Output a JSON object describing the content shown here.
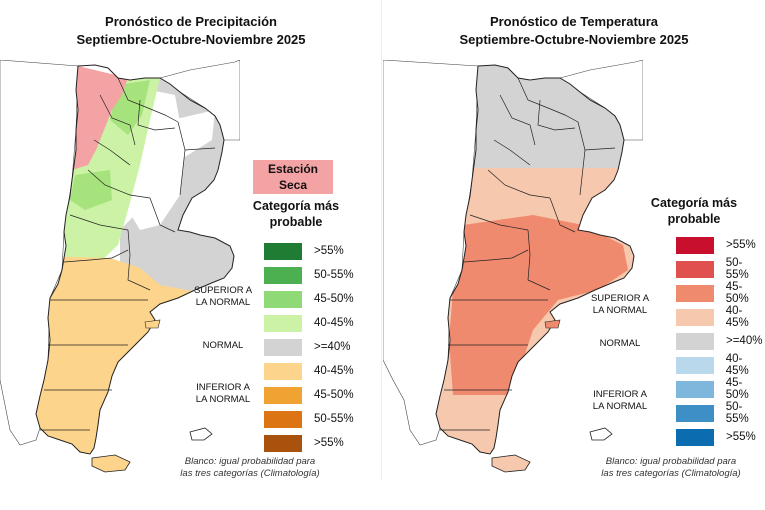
{
  "precip": {
    "title_line1": "Pronóstico de Precipitación",
    "title_line2": "Septiembre-Octubre-Noviembre 2025",
    "dry_season_line1": "Estación",
    "dry_season_line2": "Seca",
    "legend_title_line1": "Categoría más",
    "legend_title_line2": "probable",
    "legend": [
      {
        "label": ">55%",
        "color": "#1e7d32"
      },
      {
        "label": "50-55%",
        "color": "#4caf50"
      },
      {
        "label": "45-50%",
        "color": "#8fd977"
      },
      {
        "label": "40-45%",
        "color": "#ccf2a6"
      },
      {
        "label": ">=40%",
        "color": "#d3d3d3"
      },
      {
        "label": "40-45%",
        "color": "#fdd48b"
      },
      {
        "label": "45-50%",
        "color": "#f0a232"
      },
      {
        "label": "50-55%",
        "color": "#dc7414"
      },
      {
        "label": ">55%",
        "color": "#a8520d"
      }
    ],
    "superior_line1": "SUPERIOR A",
    "superior_line2": "LA NORMAL",
    "normal": "NORMAL",
    "inferior_line1": "INFERIOR A",
    "inferior_line2": "LA NORMAL",
    "footnote_line1": "Blanco: igual probabilidad para",
    "footnote_line2": "las tres categorías (Climatología)",
    "colors": {
      "dry": "#f4a3a4",
      "above_40": "#ccf2a6",
      "above_45": "#a6e37d",
      "normal": "#d3d3d3",
      "below_40": "#fdd48b",
      "white": "#ffffff"
    }
  },
  "temp": {
    "title_line1": "Pronóstico de Temperatura",
    "title_line2": "Septiembre-Octubre-Noviembre 2025",
    "legend_title_line1": "Categoría más",
    "legend_title_line2": "probable",
    "legend": [
      {
        "label": ">55%",
        "color": "#c8102e"
      },
      {
        "label": "50-55%",
        "color": "#e0504f"
      },
      {
        "label": "45-50%",
        "color": "#ef8a6f"
      },
      {
        "label": "40-45%",
        "color": "#f6c8ad"
      },
      {
        "label": ">=40%",
        "color": "#d3d3d3"
      },
      {
        "label": "40-45%",
        "color": "#b9d8ec"
      },
      {
        "label": "45-50%",
        "color": "#7fb7dc"
      },
      {
        "label": "50-55%",
        "color": "#3d8fc6"
      },
      {
        "label": ">55%",
        "color": "#0b6db0"
      }
    ],
    "superior_line1": "SUPERIOR A",
    "superior_line2": "LA NORMAL",
    "normal": "NORMAL",
    "inferior_line1": "INFERIOR A",
    "inferior_line2": "LA NORMAL",
    "footnote_line1": "Blanco: igual probabilidad para",
    "footnote_line2": "las tres categorías (Climatología)",
    "colors": {
      "normal": "#d3d3d3",
      "above_40": "#f6c8ad",
      "above_45": "#ef8a6f",
      "white": "#ffffff"
    }
  }
}
